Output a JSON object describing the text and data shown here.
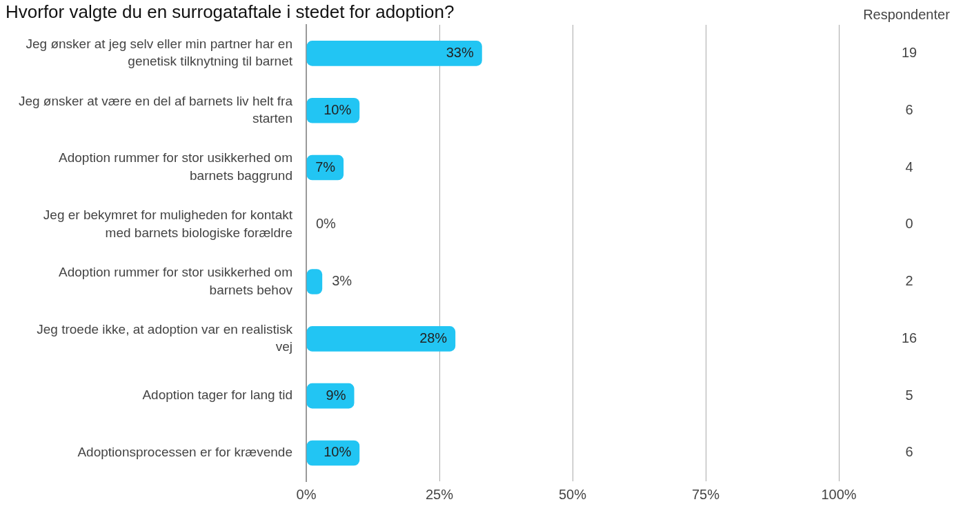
{
  "chart_data": {
    "type": "bar",
    "orientation": "horizontal",
    "title": "Hvorfor valgte du en surrogataftale i stedet for adoption?",
    "categories": [
      "Jeg ønsker at jeg selv eller min partner har en genetisk tilknytning til barnet",
      "Jeg ønsker at være en del af barnets liv helt fra starten",
      "Adoption rummer for stor usikkerhed om barnets baggrund",
      "Jeg er bekymret for muligheden for kontakt med barnets biologiske forældre",
      "Adoption rummer for stor usikkerhed om barnets behov",
      "Jeg troede ikke, at adoption var en realistisk vej",
      "Adoption tager for lang tid",
      "Adoptionsprocessen er for krævende"
    ],
    "values": [
      33,
      10,
      7,
      0,
      3,
      28,
      9,
      10
    ],
    "value_labels": [
      "33%",
      "10%",
      "7%",
      "0%",
      "3%",
      "28%",
      "9%",
      "10%"
    ],
    "color": "#22c5f3",
    "xlim": [
      0,
      100
    ],
    "xticks": [
      {
        "value": 0,
        "label": "0%"
      },
      {
        "value": 25,
        "label": "25%"
      },
      {
        "value": 50,
        "label": "50%"
      },
      {
        "value": 75,
        "label": "75%"
      },
      {
        "value": 100,
        "label": "100%"
      }
    ],
    "grid": "x",
    "legend": false,
    "annotations": [
      "Respondenter",
      "19",
      "6",
      "4",
      "0",
      "2",
      "16",
      "5",
      "6"
    ]
  }
}
